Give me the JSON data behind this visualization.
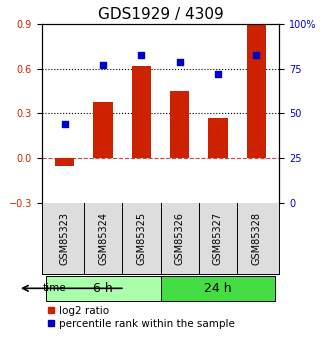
{
  "title": "GDS1929 / 4309",
  "samples": [
    "GSM85323",
    "GSM85324",
    "GSM85325",
    "GSM85326",
    "GSM85327",
    "GSM85328"
  ],
  "log2_ratio": [
    -0.05,
    0.38,
    0.62,
    0.45,
    0.27,
    0.9
  ],
  "percentile_rank": [
    0.44,
    0.77,
    0.83,
    0.79,
    0.72,
    0.83
  ],
  "groups": [
    {
      "label": "6 h",
      "indices": [
        0,
        1,
        2
      ],
      "color": "#aaffaa"
    },
    {
      "label": "24 h",
      "indices": [
        3,
        4,
        5
      ],
      "color": "#44dd44"
    }
  ],
  "bar_color": "#cc2200",
  "dot_color": "#0000cc",
  "left_ylim": [
    -0.3,
    0.9
  ],
  "left_yticks": [
    -0.3,
    0.0,
    0.3,
    0.6,
    0.9
  ],
  "right_ylim": [
    0,
    100
  ],
  "right_yticks": [
    0,
    25,
    50,
    75,
    100
  ],
  "right_yticklabels": [
    "0",
    "25",
    "50",
    "75",
    "100%"
  ],
  "hlines": [
    0.3,
    0.6
  ],
  "zero_line": 0.0,
  "bg_color": "#ffffff",
  "plot_bg": "#ffffff",
  "bar_width": 0.5,
  "title_fontsize": 11,
  "tick_fontsize": 7,
  "label_fontsize": 8,
  "legend_fontsize": 7.5,
  "group_label_fontsize": 9
}
